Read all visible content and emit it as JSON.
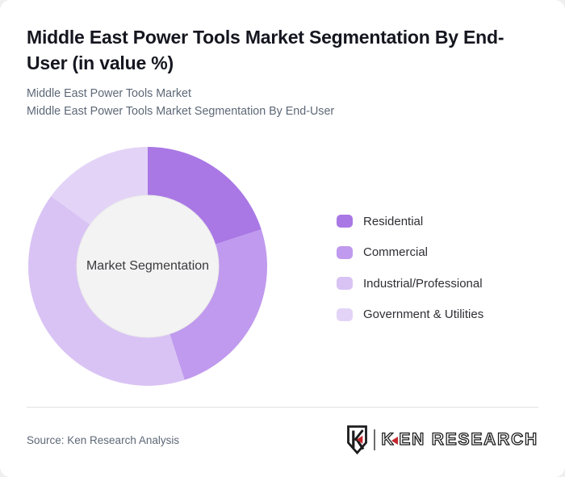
{
  "header": {
    "title": "Middle East Power Tools Market Segmentation By End-User (in value %)",
    "subtitle_line1": "Middle East Power Tools Market",
    "subtitle_line2": "Middle East Power Tools Market Segmentation By End-User"
  },
  "chart_data": {
    "type": "pie",
    "variant": "donut",
    "title": "Middle East Power Tools Market Segmentation By End-User (in value %)",
    "center_label": "Market Segmentation",
    "categories": [
      "Residential",
      "Commercial",
      "Industrial/Professional",
      "Government & Utilities"
    ],
    "values": [
      20,
      25,
      40,
      15
    ],
    "unit": "value %",
    "colors": [
      "#a978e5",
      "#c09aee",
      "#d9c3f4",
      "#e3d4f7"
    ],
    "start_angle_deg": 0,
    "direction": "clockwise",
    "legend_position": "right",
    "inner_circle_color": "#f3f3f3",
    "inner_circle_stroke": "#e9e9e9"
  },
  "footer": {
    "source": "Source: Ken Research Analysis",
    "logo": {
      "brand_k": "K",
      "brand_rest": "EN RESEARCH",
      "red": "#c4262b",
      "black": "#1c1c1e"
    }
  }
}
